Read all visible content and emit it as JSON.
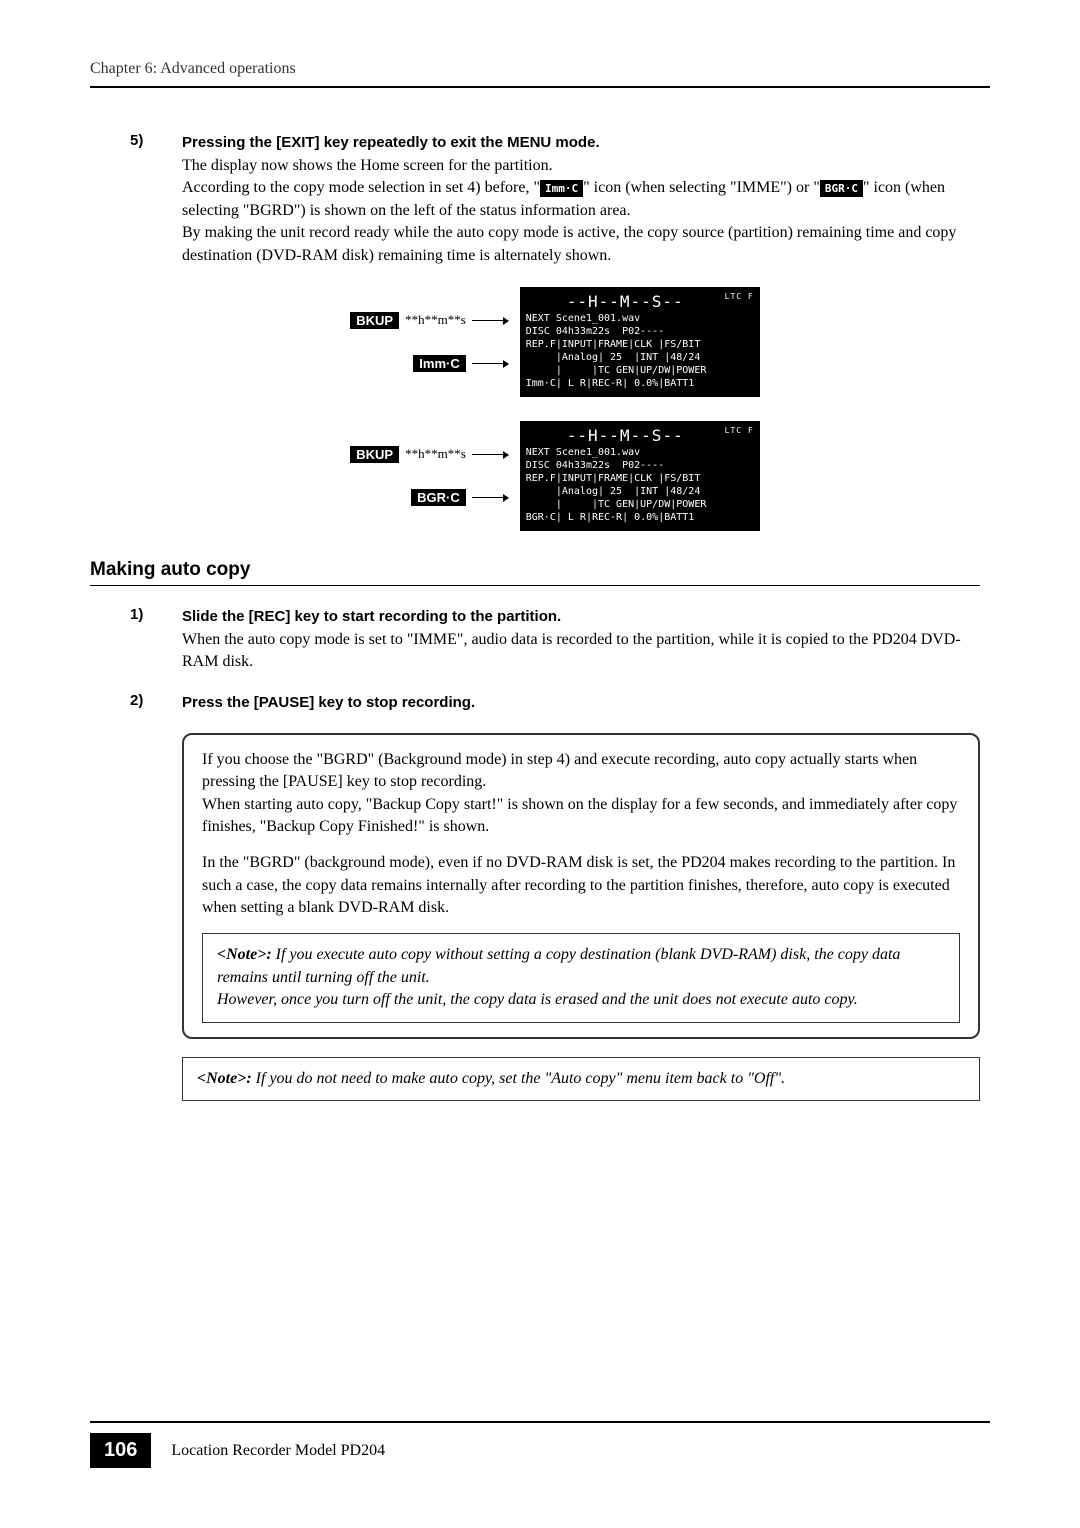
{
  "header": {
    "chapter": "Chapter 6: Advanced operations"
  },
  "step5": {
    "num": "5)",
    "title": "Pressing the [EXIT] key repeatedly to exit the MENU mode.",
    "line1": "The display now shows the Home screen for the partition.",
    "line2a": "According to the copy mode selection in set 4) before, \"",
    "icon1": "Imm·C",
    "line2b": "\" icon (when selecting \"IMME\") or \"",
    "icon2": "BGR·C",
    "line2c": "\" icon (when selecting \"BGRD\") is shown on the left of the status information area.",
    "line3": "By making the unit record ready while the auto copy mode is active, the copy source (partition) remaining time and copy destination (DVD-RAM disk) remaining time is alternately shown."
  },
  "screens": {
    "bkupLabel": "BKUP",
    "bkupTime": "**h**m**s",
    "immLabel": "Imm·C",
    "bgrLabel": "BGR·C",
    "lcd_top": "--H--M--S--",
    "lcd_ltc": "LTC F",
    "lcd_next": "NEXT Scene1_001.wav",
    "lcd_disc": "DISC 04h33m22s  P02----",
    "lcd_row1": "REP.F|INPUT|FRAME|CLK |FS/BIT",
    "lcd_row2": "     |Analog| 25  |INT |48/24",
    "lcd_row3": "     |     |TC GEN|UP/DW|POWER",
    "lcd_imm": "Imm·C| L R|REC-R| 0.0%|BATT1",
    "lcd_bgr": "BGR·C| L R|REC-R| 0.0%|BATT1"
  },
  "section": {
    "title": "Making auto copy"
  },
  "step1": {
    "num": "1)",
    "title": "Slide the [REC] key to start recording to the partition.",
    "text": "When the auto copy mode is set to \"IMME\", audio data is recorded to the partition, while it is copied to the PD204 DVD-RAM disk."
  },
  "step2": {
    "num": "2)",
    "title": "Press the [PAUSE] key to stop recording."
  },
  "box1": {
    "p1": "If you choose the \"BGRD\" (Background mode) in step 4) and execute recording, auto copy actually starts when pressing the [PAUSE] key to stop recording.",
    "p2": "When starting auto copy, \"Backup Copy start!\" is shown on the display for a few seconds, and immediately after copy finishes, \"Backup Copy Finished!\" is shown.",
    "p3": "In the \"BGRD\" (background mode), even if no DVD-RAM disk is set, the PD204 makes recording to the partition. In such a case, the copy data remains internally after recording to the partition finishes, therefore, auto copy is executed when setting a blank DVD-RAM disk.",
    "note_label": "<Note>:",
    "note1a": " If you execute auto copy without setting a copy destination (blank DVD-RAM) disk, the copy data remains until turning off the unit.",
    "note1b": "However, once you turn off the unit, the copy data is erased and the unit does not execute auto copy."
  },
  "box2": {
    "note_label": "<Note>:",
    "text": " If you do not need to make auto copy, set the \"Auto copy\" menu item back to \"Off\"."
  },
  "footer": {
    "page": "106",
    "text": "Location Recorder  Model PD204"
  }
}
